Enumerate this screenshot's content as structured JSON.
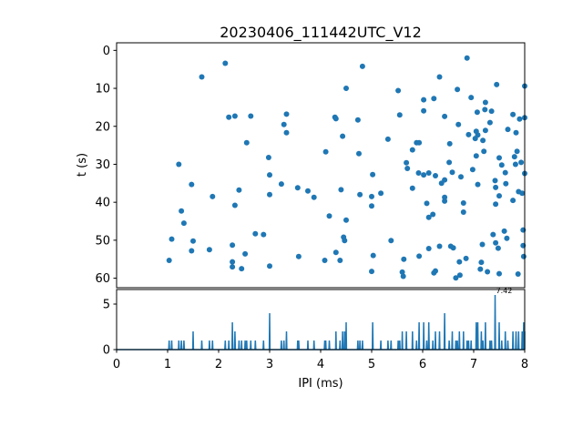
{
  "chart_data": [
    {
      "type": "scatter",
      "title": "20230406_111442UTC_V12",
      "xlabel": "",
      "ylabel": "t (s)",
      "xlim": [
        0,
        8
      ],
      "ylim": [
        62.5,
        -2
      ],
      "y_inverted": true,
      "grid": false,
      "color": "#1f77b4",
      "y_ticks": [
        "0",
        "10",
        "20",
        "30",
        "40",
        "50",
        "60"
      ],
      "y_tick_values": [
        0,
        10,
        20,
        30,
        40,
        50,
        60
      ],
      "points": [
        [
          1.03,
          55.3
        ],
        [
          1.08,
          49.7
        ],
        [
          1.22,
          30.0
        ],
        [
          1.27,
          42.3
        ],
        [
          1.32,
          45.5
        ],
        [
          1.47,
          35.3
        ],
        [
          1.47,
          52.8
        ],
        [
          1.5,
          50.2
        ],
        [
          1.67,
          7.0
        ],
        [
          1.82,
          52.5
        ],
        [
          1.88,
          38.5
        ],
        [
          2.13,
          3.4
        ],
        [
          2.2,
          17.6
        ],
        [
          2.27,
          55.7
        ],
        [
          2.27,
          57.0
        ],
        [
          2.27,
          51.3
        ],
        [
          2.32,
          17.3
        ],
        [
          2.32,
          40.8
        ],
        [
          2.4,
          36.8
        ],
        [
          2.45,
          57.5
        ],
        [
          2.52,
          53.6
        ],
        [
          2.55,
          24.3
        ],
        [
          2.63,
          17.3
        ],
        [
          2.72,
          48.3
        ],
        [
          2.98,
          28.2
        ],
        [
          3.0,
          32.8
        ],
        [
          3.0,
          38.0
        ],
        [
          3.0,
          56.8
        ],
        [
          2.88,
          48.5
        ],
        [
          3.23,
          35.2
        ],
        [
          3.28,
          19.5
        ],
        [
          3.33,
          21.7
        ],
        [
          3.33,
          16.8
        ],
        [
          3.55,
          36.2
        ],
        [
          3.57,
          54.3
        ],
        [
          3.75,
          37.0
        ],
        [
          3.87,
          38.7
        ],
        [
          4.08,
          55.3
        ],
        [
          4.1,
          26.7
        ],
        [
          4.17,
          43.6
        ],
        [
          4.28,
          17.6
        ],
        [
          4.3,
          53.2
        ],
        [
          4.3,
          18.0
        ],
        [
          4.38,
          55.3
        ],
        [
          4.4,
          36.7
        ],
        [
          4.43,
          22.6
        ],
        [
          4.45,
          49.2
        ],
        [
          4.47,
          50.1
        ],
        [
          4.5,
          10.0
        ],
        [
          4.5,
          44.7
        ],
        [
          4.73,
          18.3
        ],
        [
          4.75,
          27.2
        ],
        [
          4.77,
          38.0
        ],
        [
          4.82,
          4.2
        ],
        [
          5.0,
          41.0
        ],
        [
          5.0,
          38.5
        ],
        [
          5.02,
          32.7
        ],
        [
          5.03,
          54.0
        ],
        [
          5.0,
          58.2
        ],
        [
          5.18,
          37.6
        ],
        [
          5.32,
          23.4
        ],
        [
          5.38,
          50.1
        ],
        [
          5.52,
          10.6
        ],
        [
          5.55,
          17.0
        ],
        [
          5.6,
          58.4
        ],
        [
          5.62,
          59.5
        ],
        [
          5.63,
          55.0
        ],
        [
          5.68,
          29.6
        ],
        [
          5.7,
          31.1
        ],
        [
          5.8,
          26.2
        ],
        [
          5.8,
          36.3
        ],
        [
          5.88,
          24.3
        ],
        [
          5.93,
          54.2
        ],
        [
          5.93,
          24.3
        ],
        [
          5.92,
          32.3
        ],
        [
          6.02,
          15.9
        ],
        [
          6.02,
          13.0
        ],
        [
          6.02,
          32.8
        ],
        [
          6.08,
          40.3
        ],
        [
          6.12,
          44.0
        ],
        [
          6.12,
          32.3
        ],
        [
          6.12,
          52.2
        ],
        [
          6.2,
          43.2
        ],
        [
          6.22,
          12.7
        ],
        [
          6.22,
          58.6
        ],
        [
          6.25,
          58.1
        ],
        [
          6.25,
          33.0
        ],
        [
          6.33,
          7.0
        ],
        [
          6.33,
          51.6
        ],
        [
          6.37,
          35.0
        ],
        [
          6.43,
          34.1
        ],
        [
          6.43,
          38.7
        ],
        [
          6.43,
          39.7
        ],
        [
          6.43,
          17.4
        ],
        [
          6.52,
          29.5
        ],
        [
          6.53,
          24.6
        ],
        [
          6.55,
          51.6
        ],
        [
          6.58,
          32.1
        ],
        [
          6.6,
          52.0
        ],
        [
          6.65,
          59.9
        ],
        [
          6.68,
          10.3
        ],
        [
          6.7,
          19.5
        ],
        [
          6.72,
          55.7
        ],
        [
          6.73,
          59.2
        ],
        [
          6.75,
          33.3
        ],
        [
          6.8,
          40.2
        ],
        [
          6.8,
          42.6
        ],
        [
          6.85,
          54.8
        ],
        [
          6.87,
          2.0
        ],
        [
          6.9,
          22.2
        ],
        [
          6.95,
          12.4
        ],
        [
          6.98,
          31.4
        ],
        [
          7.03,
          23.2
        ],
        [
          7.05,
          27.8
        ],
        [
          7.05,
          21.3
        ],
        [
          7.07,
          16.3
        ],
        [
          7.08,
          22.3
        ],
        [
          7.08,
          35.3
        ],
        [
          7.13,
          57.6
        ],
        [
          7.15,
          55.8
        ],
        [
          7.17,
          51.1
        ],
        [
          7.18,
          23.7
        ],
        [
          7.2,
          26.6
        ],
        [
          7.22,
          15.6
        ],
        [
          7.23,
          21.1
        ],
        [
          7.23,
          13.7
        ],
        [
          7.27,
          58.3
        ],
        [
          7.32,
          19.0
        ],
        [
          7.35,
          16.0
        ],
        [
          7.38,
          48.5
        ],
        [
          7.42,
          34.3
        ],
        [
          7.43,
          36.1
        ],
        [
          7.43,
          40.5
        ],
        [
          7.43,
          50.7
        ],
        [
          7.45,
          9.0
        ],
        [
          7.48,
          52.1
        ],
        [
          7.5,
          28.3
        ],
        [
          7.5,
          38.3
        ],
        [
          7.5,
          58.8
        ],
        [
          7.55,
          30.2
        ],
        [
          7.6,
          47.6
        ],
        [
          7.62,
          32.2
        ],
        [
          7.63,
          35.1
        ],
        [
          7.65,
          49.5
        ],
        [
          7.67,
          20.8
        ],
        [
          7.77,
          16.9
        ],
        [
          7.77,
          39.5
        ],
        [
          7.8,
          28.0
        ],
        [
          7.82,
          30.0
        ],
        [
          7.83,
          21.7
        ],
        [
          7.85,
          26.6
        ],
        [
          7.87,
          58.9
        ],
        [
          7.88,
          37.2
        ],
        [
          7.9,
          18.1
        ],
        [
          7.93,
          29.5
        ],
        [
          7.95,
          37.6
        ],
        [
          7.97,
          47.3
        ],
        [
          7.97,
          51.4
        ],
        [
          7.98,
          54.3
        ],
        [
          8.0,
          32.4
        ],
        [
          8.0,
          17.7
        ],
        [
          8.0,
          9.4
        ]
      ]
    },
    {
      "type": "line",
      "title": "",
      "xlabel": "IPI (ms)",
      "ylabel": "",
      "xlim": [
        0,
        8
      ],
      "ylim": [
        0,
        6.6
      ],
      "grid": false,
      "color": "#1f77b4",
      "x_ticks": [
        "0",
        "1",
        "2",
        "3",
        "4",
        "5",
        "6",
        "7",
        "8"
      ],
      "x_tick_values": [
        0,
        1,
        2,
        3,
        4,
        5,
        6,
        7,
        8
      ],
      "y_ticks": [
        "0",
        "5"
      ],
      "y_tick_values": [
        0,
        5
      ],
      "peak_label": "7.42",
      "peak_x": 7.42,
      "peak_value": 6,
      "peaks": [
        [
          1.03,
          1
        ],
        [
          1.08,
          1
        ],
        [
          1.22,
          1
        ],
        [
          1.27,
          1
        ],
        [
          1.32,
          1
        ],
        [
          1.5,
          2
        ],
        [
          1.67,
          1
        ],
        [
          1.82,
          1
        ],
        [
          1.88,
          1
        ],
        [
          2.13,
          1
        ],
        [
          2.2,
          1
        ],
        [
          2.27,
          3
        ],
        [
          2.32,
          2
        ],
        [
          2.4,
          1
        ],
        [
          2.45,
          1
        ],
        [
          2.52,
          1
        ],
        [
          2.55,
          1
        ],
        [
          2.63,
          1
        ],
        [
          2.72,
          1
        ],
        [
          2.88,
          1
        ],
        [
          3.0,
          4
        ],
        [
          3.23,
          1
        ],
        [
          3.28,
          1
        ],
        [
          3.33,
          2
        ],
        [
          3.55,
          1
        ],
        [
          3.57,
          1
        ],
        [
          3.75,
          1
        ],
        [
          3.87,
          1
        ],
        [
          4.08,
          1
        ],
        [
          4.1,
          1
        ],
        [
          4.17,
          1
        ],
        [
          4.3,
          2
        ],
        [
          4.38,
          1
        ],
        [
          4.43,
          2
        ],
        [
          4.47,
          2
        ],
        [
          4.5,
          3
        ],
        [
          4.73,
          1
        ],
        [
          4.77,
          1
        ],
        [
          4.82,
          1
        ],
        [
          5.02,
          3
        ],
        [
          5.18,
          1
        ],
        [
          5.32,
          1
        ],
        [
          5.38,
          1
        ],
        [
          5.52,
          1
        ],
        [
          5.55,
          1
        ],
        [
          5.6,
          2
        ],
        [
          5.68,
          2
        ],
        [
          5.8,
          2
        ],
        [
          5.88,
          1
        ],
        [
          5.93,
          3
        ],
        [
          6.02,
          3
        ],
        [
          6.08,
          1
        ],
        [
          6.12,
          3
        ],
        [
          6.2,
          1
        ],
        [
          6.25,
          2
        ],
        [
          6.33,
          2
        ],
        [
          6.43,
          4
        ],
        [
          6.52,
          1
        ],
        [
          6.58,
          2
        ],
        [
          6.65,
          1
        ],
        [
          6.68,
          1
        ],
        [
          6.72,
          2
        ],
        [
          6.8,
          2
        ],
        [
          6.87,
          1
        ],
        [
          6.9,
          1
        ],
        [
          6.95,
          1
        ],
        [
          7.05,
          3
        ],
        [
          7.08,
          3
        ],
        [
          7.15,
          2
        ],
        [
          7.18,
          1
        ],
        [
          7.23,
          3
        ],
        [
          7.32,
          1
        ],
        [
          7.35,
          1
        ],
        [
          7.42,
          6
        ],
        [
          7.5,
          3
        ],
        [
          7.55,
          1
        ],
        [
          7.62,
          2
        ],
        [
          7.67,
          1
        ],
        [
          7.77,
          2
        ],
        [
          7.83,
          2
        ],
        [
          7.88,
          2
        ],
        [
          7.95,
          2
        ],
        [
          7.98,
          3
        ],
        [
          8.0,
          2
        ]
      ]
    }
  ]
}
